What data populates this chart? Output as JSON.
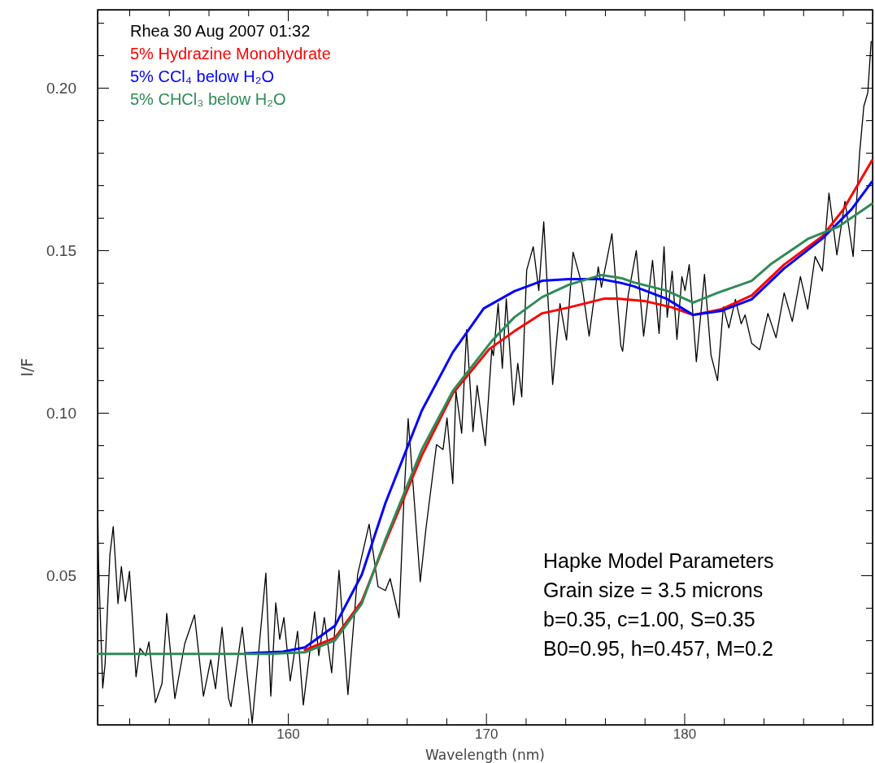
{
  "chart_data": {
    "type": "line",
    "xlabel": "Wavelength (nm)",
    "ylabel": "I/F",
    "xlim": [
      150.4,
      189.5
    ],
    "ylim": [
      0.004,
      0.224
    ],
    "xticks": [
      {
        "value": 152,
        "label": null
      },
      {
        "value": 154,
        "label": null
      },
      {
        "value": 156,
        "label": null
      },
      {
        "value": 158,
        "label": null
      },
      160,
      {
        "value": 162,
        "label": null
      },
      {
        "value": 164,
        "label": null
      },
      {
        "value": 166,
        "label": null
      },
      {
        "value": 168,
        "label": null
      },
      170,
      {
        "value": 172,
        "label": null
      },
      {
        "value": 174,
        "label": null
      },
      {
        "value": 176,
        "label": null
      },
      {
        "value": 178,
        "label": null
      },
      180,
      {
        "value": 182,
        "label": null
      },
      {
        "value": 184,
        "label": null
      },
      {
        "value": 186,
        "label": null
      },
      {
        "value": 188,
        "label": null
      }
    ],
    "yticks": [
      {
        "value": 0.01,
        "label": null
      },
      {
        "value": 0.02,
        "label": null
      },
      {
        "value": 0.03,
        "label": null
      },
      {
        "value": 0.04,
        "label": null
      },
      0.05,
      {
        "value": 0.06,
        "label": null
      },
      {
        "value": 0.07,
        "label": null
      },
      {
        "value": 0.08,
        "label": null
      },
      {
        "value": 0.09,
        "label": null
      },
      {
        "value": 0.1,
        "label": "0.10"
      },
      {
        "value": 0.11,
        "label": null
      },
      {
        "value": 0.12,
        "label": null
      },
      {
        "value": 0.13,
        "label": null
      },
      {
        "value": 0.14,
        "label": null
      },
      0.15,
      {
        "value": 0.16,
        "label": null
      },
      {
        "value": 0.17,
        "label": null
      },
      {
        "value": 0.18,
        "label": null
      },
      {
        "value": 0.19,
        "label": null
      },
      {
        "value": 0.2,
        "label": "0.20"
      },
      {
        "value": 0.21,
        "label": null
      },
      {
        "value": 0.22,
        "label": null
      }
    ],
    "grid": false,
    "legend": "top left",
    "marker": "none",
    "series": [
      {
        "name": "Rhea 30 Aug 2007 01:32",
        "color": "#000000",
        "x": [
          150.41,
          150.45,
          150.66,
          150.78,
          151.02,
          151.19,
          151.43,
          151.6,
          151.8,
          152.01,
          152.34,
          152.54,
          152.83,
          152.99,
          153.32,
          153.65,
          153.89,
          154.3,
          154.8,
          155.29,
          155.74,
          156.11,
          156.35,
          156.68,
          157.01,
          157.13,
          157.7,
          158.2,
          158.89,
          159.14,
          159.39,
          159.59,
          159.8,
          160.12,
          160.49,
          160.78,
          161.35,
          161.56,
          161.84,
          162.21,
          162.58,
          163.03,
          163.52,
          164.1,
          164.55,
          164.92,
          165.16,
          165.61,
          165.86,
          166.07,
          166.68,
          166.97,
          167.5,
          167.83,
          168.03,
          168.32,
          168.48,
          168.77,
          169.02,
          169.34,
          169.55,
          169.96,
          170.29,
          170.37,
          170.61,
          170.82,
          171.02,
          171.39,
          171.6,
          171.8,
          172.05,
          172.38,
          172.66,
          172.91,
          173.36,
          173.73,
          174.06,
          174.39,
          174.84,
          175.2,
          175.66,
          175.82,
          176.35,
          176.8,
          176.89,
          177.17,
          177.58,
          177.95,
          178.4,
          178.73,
          178.98,
          179.14,
          179.39,
          179.63,
          179.88,
          180.04,
          180.25,
          180.61,
          181.02,
          181.35,
          181.68,
          181.97,
          182.25,
          182.58,
          182.87,
          183.07,
          183.4,
          183.81,
          184.22,
          184.63,
          185.04,
          185.45,
          185.86,
          186.23,
          186.6,
          186.97,
          187.3,
          187.7,
          188.11,
          188.52,
          188.85,
          189.06,
          189.26,
          189.43
        ],
        "values": [
          0.0695,
          0.0532,
          0.0153,
          0.0228,
          0.0562,
          0.065,
          0.0413,
          0.0527,
          0.042,
          0.0512,
          0.0188,
          0.0275,
          0.0253,
          0.0295,
          0.0108,
          0.0167,
          0.0383,
          0.0121,
          0.029,
          0.0378,
          0.0128,
          0.024,
          0.0151,
          0.034,
          0.0121,
          0.0096,
          0.034,
          0.0045,
          0.0507,
          0.0128,
          0.0415,
          0.0303,
          0.037,
          0.0175,
          0.0328,
          0.0101,
          0.0388,
          0.0253,
          0.037,
          0.02,
          0.0515,
          0.0133,
          0.0502,
          0.0657,
          0.0465,
          0.0453,
          0.049,
          0.037,
          0.074,
          0.0982,
          0.048,
          0.0645,
          0.0902,
          0.0887,
          0.0984,
          0.0782,
          0.1067,
          0.0937,
          0.1256,
          0.0942,
          0.1084,
          0.0899,
          0.1196,
          0.1176,
          0.1336,
          0.1137,
          0.1351,
          0.1024,
          0.1152,
          0.1049,
          0.1439,
          0.1511,
          0.1376,
          0.1588,
          0.1087,
          0.1336,
          0.1224,
          0.1494,
          0.1394,
          0.1236,
          0.1449,
          0.1386,
          0.1551,
          0.1206,
          0.1189,
          0.1361,
          0.1499,
          0.1236,
          0.1469,
          0.1244,
          0.1511,
          0.1294,
          0.1436,
          0.1226,
          0.1419,
          0.1376,
          0.1456,
          0.1157,
          0.1426,
          0.1177,
          0.1099,
          0.1326,
          0.1261,
          0.1349,
          0.1274,
          0.1301,
          0.1214,
          0.1194,
          0.1306,
          0.1231,
          0.1369,
          0.1281,
          0.1419,
          0.1319,
          0.1481,
          0.1436,
          0.1676,
          0.1486,
          0.1651,
          0.1481,
          0.1801,
          0.1943,
          0.1985,
          0.2143
        ]
      },
      {
        "name": "5% Hydrazine Monohydrate",
        "color": "#ff0000",
        "x": [
          160.86,
          162.38,
          163.73,
          164.92,
          166.76,
          168.32,
          170.16,
          171.43,
          172.83,
          174.18,
          175.94,
          176.64,
          177.99,
          179.39,
          180.45,
          181.89,
          183.4,
          185.04,
          186.97,
          188.03,
          189.47
        ],
        "values": [
          0.027,
          0.0308,
          0.042,
          0.0602,
          0.0869,
          0.1059,
          0.1196,
          0.1251,
          0.1306,
          0.1324,
          0.1351,
          0.1351,
          0.1344,
          0.1324,
          0.1301,
          0.1319,
          0.1361,
          0.1456,
          0.1543,
          0.1626,
          0.1776
        ]
      },
      {
        "name": "5% CCl₄ below H₂O",
        "color": "#0000ff",
        "x": [
          157.87,
          159.75,
          160.86,
          162.38,
          163.73,
          164.92,
          166.76,
          168.32,
          169.88,
          171.43,
          172.83,
          174.18,
          175.82,
          176.84,
          177.46,
          179.1,
          180.45,
          181.89,
          183.4,
          185.04,
          186.97,
          188.44,
          189.47
        ],
        "values": [
          0.026,
          0.0265,
          0.0278,
          0.0345,
          0.0502,
          0.0722,
          0.1007,
          0.1186,
          0.1321,
          0.1374,
          0.1406,
          0.1411,
          0.1411,
          0.1399,
          0.1389,
          0.1351,
          0.1301,
          0.1314,
          0.1349,
          0.1444,
          0.1536,
          0.1626,
          0.1711
        ]
      },
      {
        "name": "5% CHCl₃ below H₂O",
        "color": "#2e8b57",
        "x": [
          150.41,
          159.0,
          160.86,
          162.38,
          163.73,
          164.92,
          166.76,
          168.32,
          170.29,
          171.43,
          172.83,
          174.18,
          175.82,
          176.84,
          177.46,
          179.1,
          180.45,
          181.68,
          183.4,
          184.34,
          186.27,
          187.79,
          189.47
        ],
        "values": [
          0.0258,
          0.0258,
          0.0263,
          0.03,
          0.0413,
          0.061,
          0.0887,
          0.1067,
          0.1221,
          0.1294,
          0.1356,
          0.1394,
          0.1424,
          0.1414,
          0.1401,
          0.1376,
          0.1339,
          0.1369,
          0.1406,
          0.1456,
          0.1536,
          0.1573,
          0.1643
        ]
      }
    ],
    "annotations": [
      "Hapke Model Parameters",
      "Grain size = 3.5 microns",
      "b=0.35, c=1.00, S=0.35",
      "B0=0.95, h=0.457, M=0.2"
    ]
  }
}
